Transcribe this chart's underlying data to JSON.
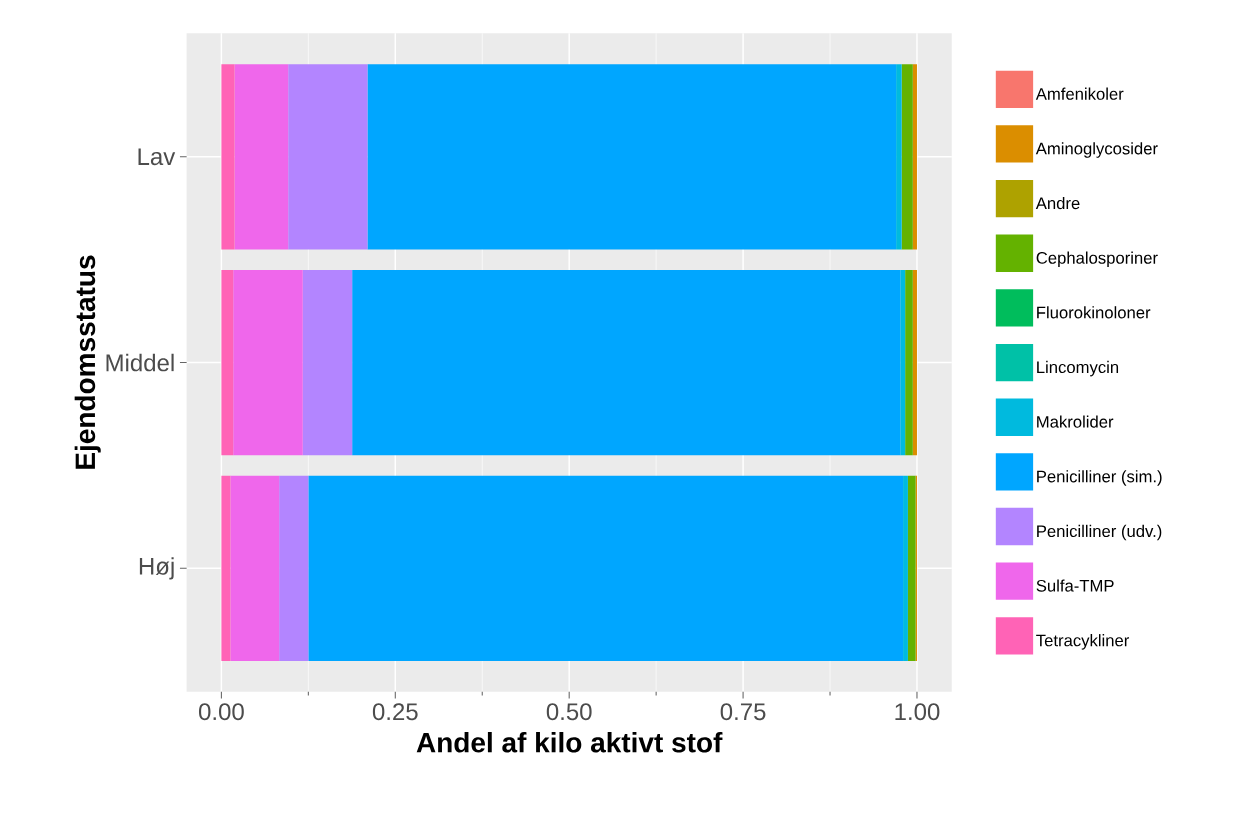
{
  "chart_data": {
    "type": "bar",
    "orientation": "horizontal",
    "stacked": true,
    "xlabel": "Andel af kilo aktivt stof",
    "ylabel": "Ejendomsstatus",
    "categories": [
      "Lav",
      "Middel",
      "Høj"
    ],
    "series": [
      {
        "name": "Tetracykliner",
        "color": "#ff63b6",
        "values": [
          0.019,
          0.017,
          0.013
        ]
      },
      {
        "name": "Sulfa-TMP",
        "color": "#ef67eb",
        "values": [
          0.077,
          0.1,
          0.07
        ]
      },
      {
        "name": "Penicilliner (udv.)",
        "color": "#b385ff",
        "values": [
          0.114,
          0.071,
          0.042
        ]
      },
      {
        "name": "Penicilliner (sim.)",
        "color": "#00a6ff",
        "values": [
          0.76,
          0.788,
          0.855
        ]
      },
      {
        "name": "Makrolider",
        "color": "#00bade",
        "values": [
          0.008,
          0.007,
          0.007
        ]
      },
      {
        "name": "Lincomycin",
        "color": "#00c1a7",
        "values": [
          0,
          0,
          0
        ]
      },
      {
        "name": "Fluorokinoloner",
        "color": "#00bd5c",
        "values": [
          0,
          0,
          0
        ]
      },
      {
        "name": "Cephalosporiner",
        "color": "#64b200",
        "values": [
          0.016,
          0.011,
          0.011
        ]
      },
      {
        "name": "Andre",
        "color": "#aea200",
        "values": [
          0,
          0,
          0
        ]
      },
      {
        "name": "Aminoglycosider",
        "color": "#db8e00",
        "values": [
          0.006,
          0.006,
          0.002
        ]
      },
      {
        "name": "Amfenikoler",
        "color": "#f8766d",
        "values": [
          0,
          0,
          0
        ]
      }
    ],
    "xlim": [
      -0.05,
      1.05
    ],
    "xticks": [
      {
        "value": 0,
        "label": "0.00"
      },
      {
        "value": 0.25,
        "label": "0.25"
      },
      {
        "value": 0.5,
        "label": "0.50"
      },
      {
        "value": 0.75,
        "label": "0.75"
      },
      {
        "value": 1,
        "label": "1.00"
      }
    ],
    "grid": true,
    "legend": "right"
  }
}
